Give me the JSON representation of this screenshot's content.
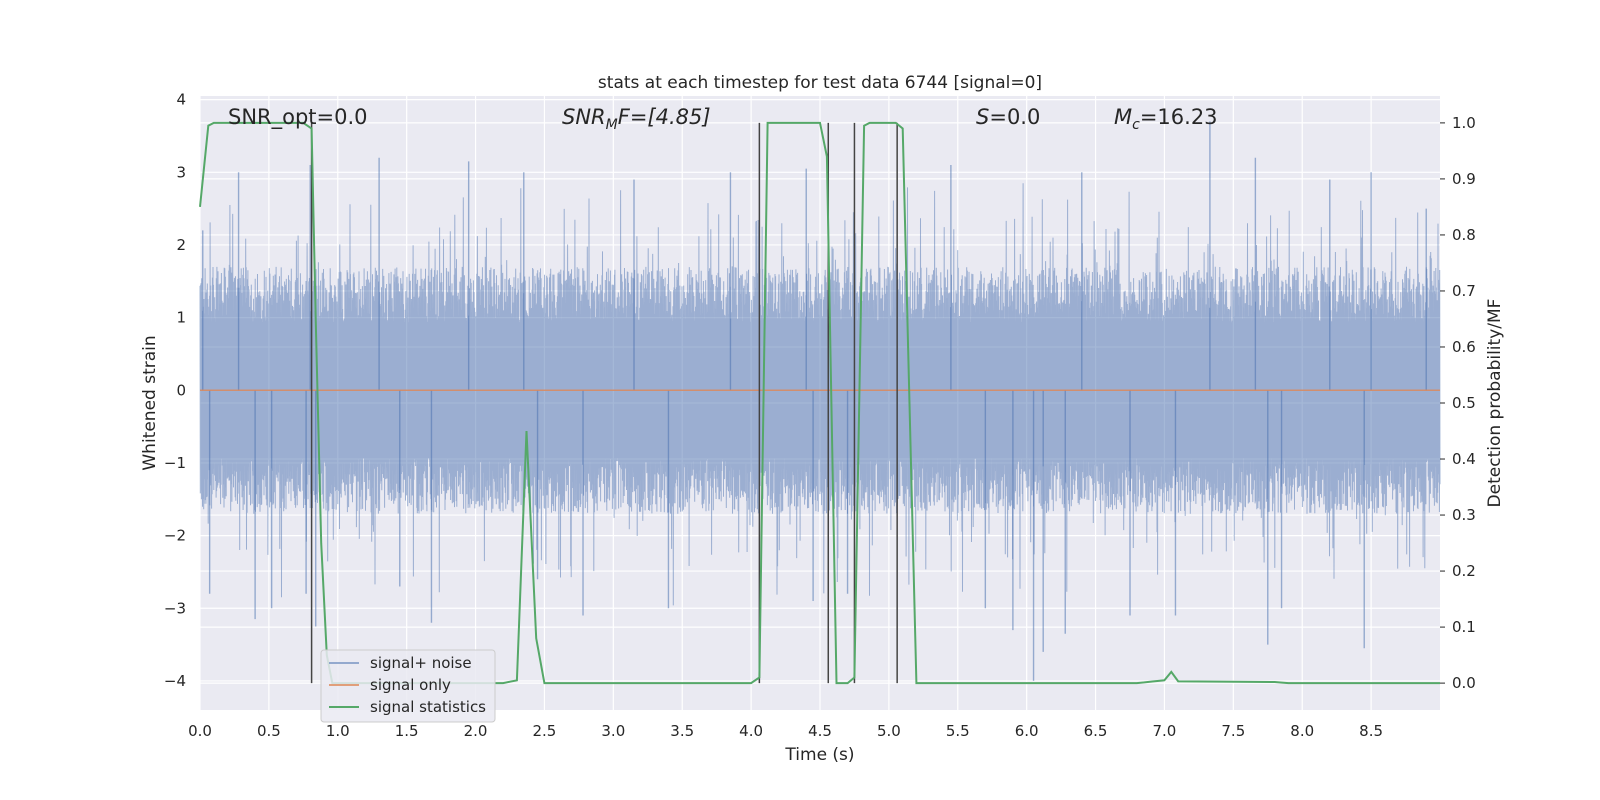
{
  "chart_data": {
    "type": "line",
    "title": "stats at each timestep for test data 6744 [signal=0]",
    "xlabel": "Time (s)",
    "ylabel_left": "Whitened strain",
    "ylabel_right": "Detection probability/MF",
    "xlim": [
      0,
      9.0
    ],
    "ylim_left": [
      -4.4,
      4.05
    ],
    "ylim_right": [
      -0.048,
      1.048
    ],
    "xticks": [
      0.0,
      0.5,
      1.0,
      1.5,
      2.0,
      2.5,
      3.0,
      3.5,
      4.0,
      4.5,
      5.0,
      5.5,
      6.0,
      6.5,
      7.0,
      7.5,
      8.0,
      8.5
    ],
    "xtick_labels": [
      "0.0",
      "0.5",
      "1.0",
      "1.5",
      "2.0",
      "2.5",
      "3.0",
      "3.5",
      "4.0",
      "4.5",
      "5.0",
      "5.5",
      "6.0",
      "6.5",
      "7.0",
      "7.5",
      "8.0",
      "8.5"
    ],
    "yticks_left": [
      4,
      3,
      2,
      1,
      0,
      -1,
      -2,
      -3,
      -4
    ],
    "ytick_labels_left": [
      "4",
      "3",
      "2",
      "1",
      "0",
      "−1",
      "−2",
      "−3",
      "−4"
    ],
    "yticks_right": [
      1.0,
      0.9,
      0.8,
      0.7,
      0.6,
      0.5,
      0.4,
      0.3,
      0.2,
      0.1,
      0.0
    ],
    "ytick_labels_right": [
      "1.0",
      "0.9",
      "0.8",
      "0.7",
      "0.6",
      "0.5",
      "0.4",
      "0.3",
      "0.2",
      "0.1",
      "0.0"
    ],
    "grid": true,
    "legend_position": "lower-left",
    "annotations": {
      "snr_opt": "SNR_opt=0.0",
      "snr_mf_base": "SNR",
      "snr_mf_sub": "M",
      "snr_mf_rest": "F=[4.85]",
      "s_stat_sym": "S",
      "s_stat_rest": "=0.0",
      "mc_base": "M",
      "mc_sub": "c",
      "mc_rest": "=16.23"
    },
    "series": [
      {
        "name": "signal+ noise",
        "color": "#4c72b0",
        "axis": "left",
        "style": "dense noise, amplitude mostly within ±1.7, peaks near ±3",
        "envelope_typical": 1.7,
        "peaks": [
          {
            "x": 0.02,
            "y": 2.2
          },
          {
            "x": 0.07,
            "y": -2.8
          },
          {
            "x": 0.28,
            "y": 3.0
          },
          {
            "x": 0.4,
            "y": -3.15
          },
          {
            "x": 0.52,
            "y": -3.0
          },
          {
            "x": 0.77,
            "y": -2.8
          },
          {
            "x": 0.84,
            "y": -3.25
          },
          {
            "x": 0.8,
            "y": 3.1
          },
          {
            "x": 1.3,
            "y": 3.2
          },
          {
            "x": 1.45,
            "y": -2.7
          },
          {
            "x": 1.68,
            "y": -3.2
          },
          {
            "x": 1.95,
            "y": 3.15
          },
          {
            "x": 2.35,
            "y": 3.0
          },
          {
            "x": 2.45,
            "y": -2.6
          },
          {
            "x": 2.78,
            "y": -3.1
          },
          {
            "x": 3.15,
            "y": 2.9
          },
          {
            "x": 3.4,
            "y": -3.0
          },
          {
            "x": 3.85,
            "y": 3.0
          },
          {
            "x": 4.4,
            "y": 3.05
          },
          {
            "x": 4.45,
            "y": -2.9
          },
          {
            "x": 4.7,
            "y": -2.8
          },
          {
            "x": 5.45,
            "y": 3.1
          },
          {
            "x": 5.7,
            "y": -3.0
          },
          {
            "x": 5.9,
            "y": -3.3
          },
          {
            "x": 6.05,
            "y": -4.0
          },
          {
            "x": 6.12,
            "y": -3.6
          },
          {
            "x": 6.28,
            "y": -3.35
          },
          {
            "x": 6.4,
            "y": 3.0
          },
          {
            "x": 6.75,
            "y": -3.1
          },
          {
            "x": 7.08,
            "y": -3.1
          },
          {
            "x": 7.33,
            "y": 3.7
          },
          {
            "x": 7.66,
            "y": 3.2
          },
          {
            "x": 7.75,
            "y": -3.5
          },
          {
            "x": 7.85,
            "y": -3.0
          },
          {
            "x": 8.2,
            "y": 2.9
          },
          {
            "x": 8.45,
            "y": -3.55
          },
          {
            "x": 8.5,
            "y": 3.0
          },
          {
            "x": 8.9,
            "y": 2.5
          }
        ]
      },
      {
        "name": "signal only",
        "color": "#dd8452",
        "axis": "left",
        "x": [
          0,
          9.0
        ],
        "y": [
          0,
          0
        ]
      },
      {
        "name": "signal statistics",
        "color": "#55a868",
        "axis": "right",
        "x": [
          0.0,
          0.06,
          0.1,
          0.75,
          0.81,
          0.84,
          0.88,
          0.92,
          0.96,
          1.0,
          2.2,
          2.3,
          2.37,
          2.44,
          2.5,
          4.0,
          4.06,
          4.12,
          4.5,
          4.55,
          4.62,
          4.7,
          4.75,
          4.82,
          4.86,
          5.05,
          5.1,
          5.2,
          6.8,
          7.0,
          7.05,
          7.1,
          7.8,
          7.9,
          9.0
        ],
        "y": [
          0.85,
          0.995,
          1.0,
          1.0,
          0.99,
          0.65,
          0.25,
          0.05,
          0.0,
          0.0,
          0.0,
          0.005,
          0.45,
          0.08,
          0.0,
          0.0,
          0.01,
          1.0,
          1.0,
          0.94,
          0.0,
          0.0,
          0.01,
          0.995,
          1.0,
          1.0,
          0.99,
          0.0,
          0.0,
          0.005,
          0.02,
          0.003,
          0.002,
          0.0,
          0.0
        ]
      }
    ],
    "vertical_markers": {
      "color": "#444444",
      "axis": "right",
      "lines": [
        {
          "x": 0.81,
          "y_top": 1.0
        },
        {
          "x": 4.06,
          "y_top": 1.0
        },
        {
          "x": 4.56,
          "y_top": 1.0
        },
        {
          "x": 4.75,
          "y_top": 1.0
        },
        {
          "x": 5.06,
          "y_top": 1.0
        }
      ]
    }
  }
}
